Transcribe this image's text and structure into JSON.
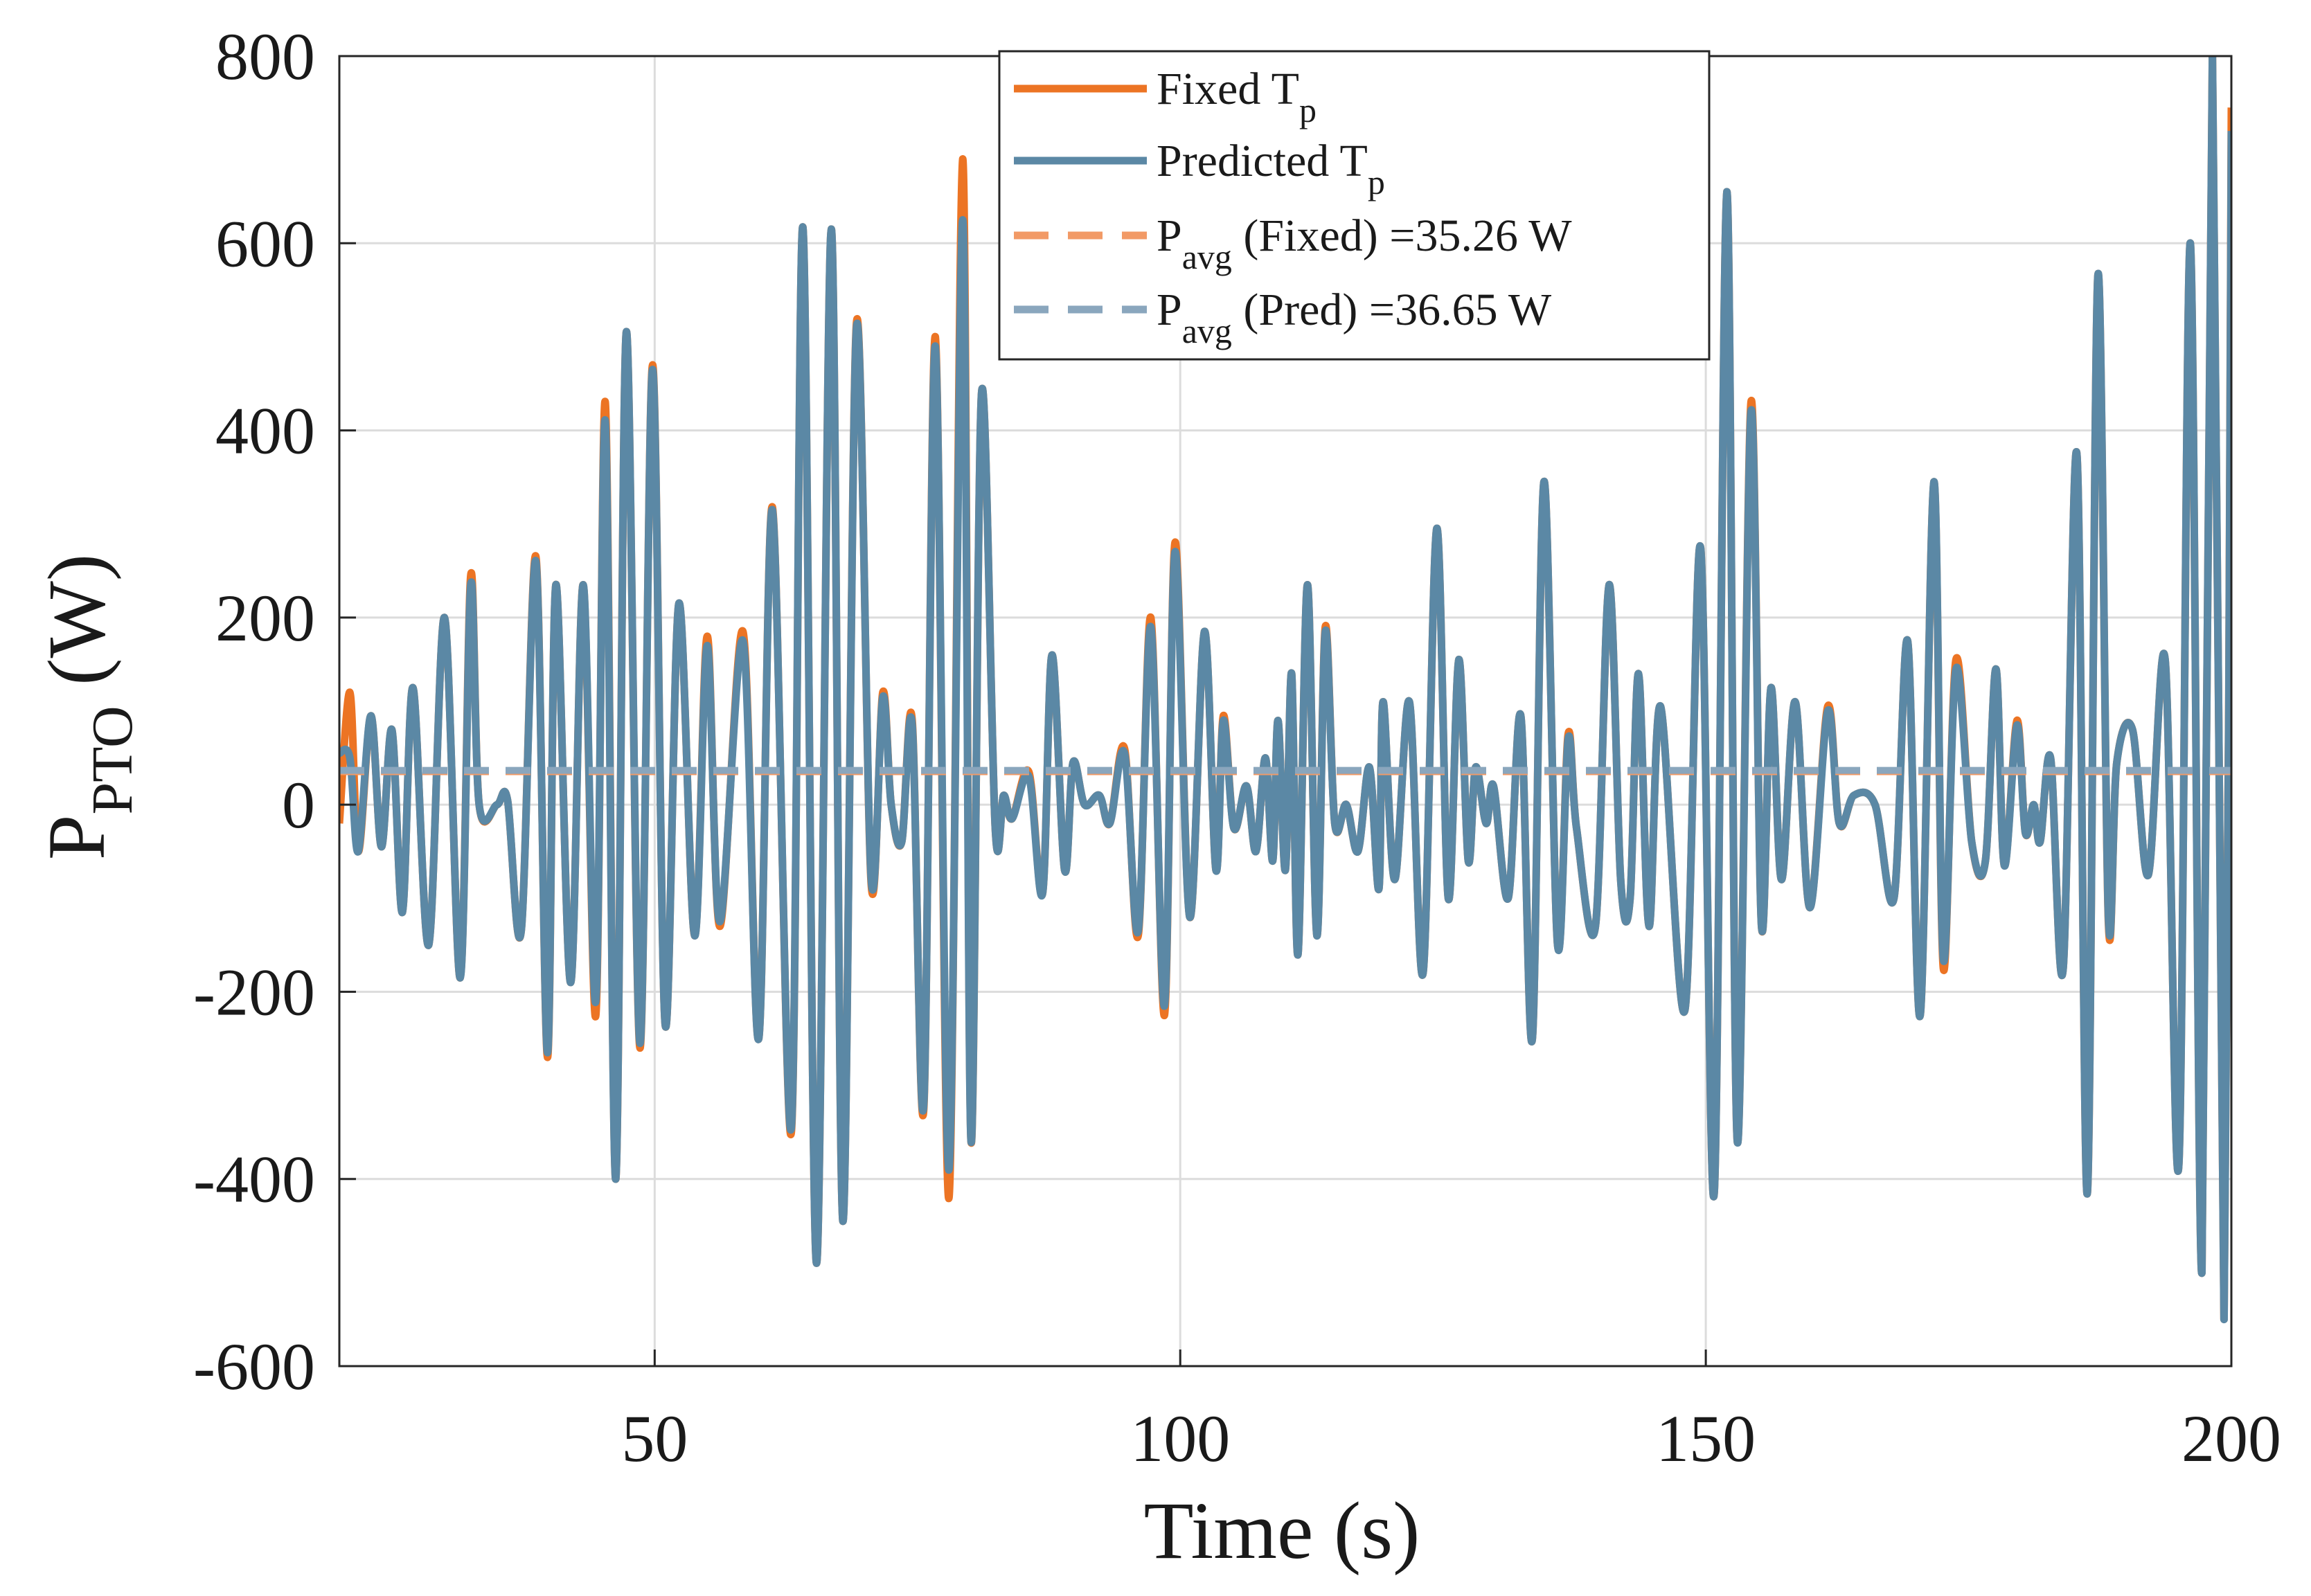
{
  "chart_data": {
    "type": "line",
    "xlabel": "Time (s)",
    "ylabel": "P",
    "ylabel_sub": "PTO",
    "ylabel_rest": " (W)",
    "xlim": [
      20,
      200
    ],
    "xticks": [
      50,
      100,
      150,
      200
    ],
    "ylim": [
      -600,
      800
    ],
    "yticks": [
      -600,
      -400,
      -200,
      0,
      200,
      400,
      600,
      800
    ],
    "grid": true,
    "legend": "upper center",
    "x": [
      20,
      21,
      21.8,
      23,
      24,
      25,
      26,
      27,
      28.5,
      30,
      31.5,
      32.5,
      33.3,
      35,
      36,
      37.3,
      38.7,
      39.8,
      40.6,
      42,
      43.2,
      44.4,
      45.3,
      46.3,
      47.3,
      48.6,
      49.8,
      51,
      52.3,
      53.8,
      55,
      56.2,
      58.4,
      59.9,
      61.2,
      63,
      64.1,
      65.4,
      66.8,
      67.9,
      69.2,
      70.6,
      71.7,
      72.5,
      73.5,
      74.5,
      75.6,
      76.7,
      78,
      79.3,
      80.1,
      81.1,
      82.4,
      83.2,
      84,
      85.6,
      86.9,
      87.8,
      89,
      89.8,
      90.9,
      92.3,
      93.3,
      94.7,
      96,
      97.2,
      98.5,
      99.5,
      100.9,
      102.3,
      103.4,
      104.1,
      105.1,
      106.3,
      107.2,
      108.1,
      108.8,
      109.3,
      110,
      110.6,
      111.2,
      112.1,
      113,
      113.8,
      114.7,
      115.8,
      116.9,
      118,
      118.9,
      119.3,
      120.4,
      121.8,
      123.1,
      124.4,
      125.5,
      126.5,
      127.4,
      128.1,
      129.1,
      129.8,
      131.2,
      132.4,
      133.5,
      134.6,
      135.9,
      136.9,
      137.7,
      139.5,
      140.8,
      141.9,
      142.8,
      143.6,
      144.6,
      145.7,
      148,
      149.5,
      150.8,
      152,
      153,
      154.3,
      155.3,
      156.2,
      157.2,
      158.5,
      159.9,
      161.6,
      162.7,
      164.1,
      166.1,
      167.9,
      169.2,
      170.4,
      171.7,
      172.6,
      173.8,
      175.3,
      176.6,
      177.6,
      178.4,
      179.6,
      180.4,
      181.2,
      181.8,
      182.8,
      184,
      185.3,
      186.3,
      187.3,
      188.3,
      189.1,
      190.6,
      192.1,
      193.7,
      195,
      196.1,
      197.2,
      198.2,
      199.3,
      200
    ],
    "series": [
      {
        "name": "Fixed T",
        "name_sub": "p",
        "color": "#ec7424",
        "values": [
          -20,
          120,
          -50,
          95,
          -45,
          80,
          -115,
          125,
          -150,
          200,
          -185,
          245,
          0,
          0,
          5,
          -135,
          265,
          -270,
          235,
          -190,
          235,
          -225,
          430,
          -400,
          505,
          -260,
          470,
          -235,
          215,
          -140,
          180,
          -130,
          185,
          -250,
          318,
          -350,
          617,
          -490,
          615,
          -445,
          515,
          -85,
          120,
          0,
          -40,
          90,
          -325,
          500,
          -420,
          690,
          -360,
          440,
          -25,
          10,
          -15,
          35,
          -95,
          160,
          -70,
          45,
          0,
          10,
          -20,
          60,
          -140,
          200,
          -225,
          280,
          -120,
          185,
          -70,
          95,
          -25,
          20,
          -50,
          50,
          -60,
          90,
          -70,
          140,
          -160,
          235,
          -140,
          190,
          -20,
          0,
          -50,
          40,
          -90,
          110,
          -80,
          110,
          -180,
          295,
          -100,
          155,
          -60,
          40,
          -20,
          20,
          -100,
          95,
          -250,
          345,
          -150,
          75,
          -25,
          -130,
          235,
          -80,
          -100,
          140,
          -130,
          105,
          -220,
          275,
          -415,
          655,
          -360,
          430,
          -130,
          125,
          -80,
          110,
          -110,
          105,
          -20,
          10,
          0,
          -100,
          175,
          -225,
          345,
          -175,
          155,
          -40,
          -60,
          145,
          -65,
          90,
          -30,
          0,
          -40,
          50,
          -175,
          375,
          -415,
          565,
          -125,
          45,
          80,
          -75,
          155,
          -385,
          600,
          -500,
          800,
          -550,
          745
        ]
      },
      {
        "name": "Predicted T",
        "name_sub": "p",
        "color": "#5b88a5",
        "values": [
          55,
          50,
          -50,
          95,
          -45,
          80,
          -115,
          125,
          -150,
          200,
          -185,
          235,
          0,
          0,
          5,
          -135,
          260,
          -265,
          235,
          -190,
          235,
          -210,
          410,
          -400,
          505,
          -255,
          465,
          -235,
          215,
          -140,
          170,
          -125,
          175,
          -250,
          315,
          -345,
          617,
          -490,
          615,
          -445,
          510,
          -80,
          115,
          0,
          -40,
          85,
          -320,
          490,
          -390,
          625,
          -360,
          440,
          -25,
          10,
          -15,
          30,
          -95,
          160,
          -70,
          45,
          0,
          10,
          -20,
          55,
          -135,
          190,
          -215,
          270,
          -120,
          185,
          -70,
          90,
          -25,
          20,
          -50,
          50,
          -60,
          90,
          -70,
          140,
          -160,
          235,
          -140,
          185,
          -20,
          0,
          -50,
          40,
          -90,
          110,
          -80,
          110,
          -180,
          295,
          -100,
          155,
          -60,
          40,
          -20,
          20,
          -100,
          95,
          -250,
          345,
          -150,
          70,
          -25,
          -130,
          235,
          -80,
          -100,
          140,
          -130,
          105,
          -220,
          275,
          -415,
          655,
          -360,
          420,
          -130,
          125,
          -80,
          110,
          -110,
          100,
          -20,
          10,
          0,
          -100,
          175,
          -225,
          345,
          -165,
          145,
          -40,
          -60,
          145,
          -65,
          85,
          -30,
          0,
          -40,
          50,
          -175,
          375,
          -415,
          565,
          -120,
          45,
          80,
          -75,
          155,
          -385,
          600,
          -500,
          800,
          -550,
          720
        ]
      }
    ],
    "average_lines": [
      {
        "name": "P",
        "name_sub": "avg",
        "name_rest": " (Fixed) =35.26 W",
        "value": 35.26,
        "color": "#f29a66"
      },
      {
        "name": "P",
        "name_sub": "avg",
        "name_rest": " (Pred) =36.65 W",
        "value": 36.65,
        "color": "#8aa6bd"
      }
    ]
  }
}
